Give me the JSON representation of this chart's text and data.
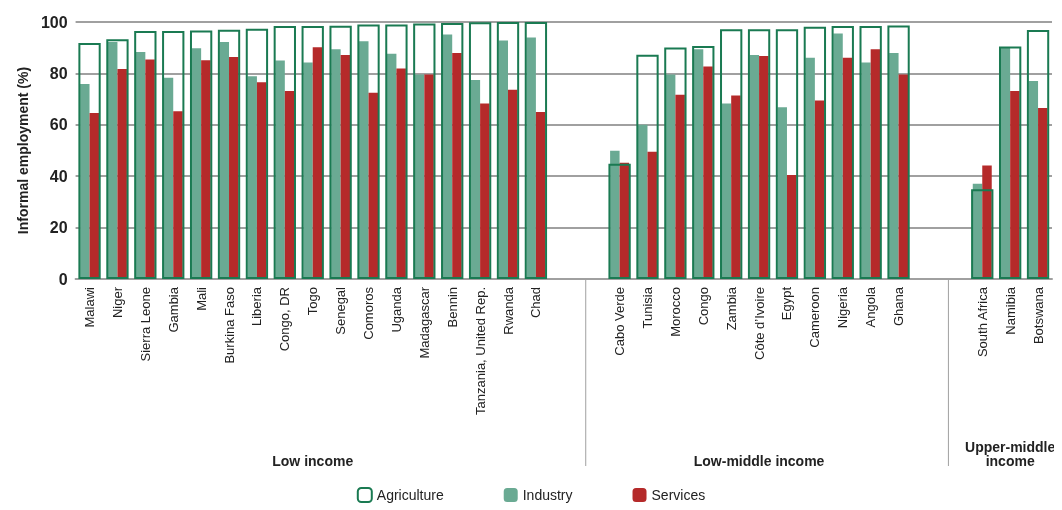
{
  "chart_data": {
    "type": "bar",
    "ylabel": "Informal employment (%)",
    "ylim": [
      0,
      100
    ],
    "yticks": [
      0,
      20,
      40,
      60,
      80,
      100
    ],
    "grid": "y",
    "legend": "bottom",
    "categories": [
      "Malawi",
      "Niger",
      "Sierra Leone",
      "Gambia",
      "Mali",
      "Burkina Faso",
      "Liberia",
      "Congo, DR",
      "Togo",
      "Senegal",
      "Comoros",
      "Uganda",
      "Madagascar",
      "Bennin",
      "Tanzania, United Rep.",
      "Rwanda",
      "Chad",
      null,
      null,
      "Cabo Verde",
      "Tunisia",
      "Morocco",
      "Congo",
      "Zambia",
      "Côte d’Ivoire",
      "Egypt",
      "Cameroon",
      "Nigeria",
      "Angola",
      "Ghana",
      null,
      null,
      "South Africa",
      "Namibia",
      "Botswana"
    ],
    "series": [
      {
        "name": "Agriculture",
        "color": "#1a7a52",
        "values": [
          91.8,
          93.3,
          96.5,
          96.5,
          96.7,
          97,
          97.4,
          98.4,
          98.4,
          98.5,
          99,
          99,
          99.4,
          99.6,
          99.9,
          100,
          100,
          null,
          null,
          44.8,
          87.3,
          90.1,
          90.7,
          97.2,
          97.2,
          97.2,
          98.2,
          98.4,
          98.4,
          98.6,
          null,
          null,
          34.9,
          90.5,
          96.9
        ]
      },
      {
        "name": "Industry",
        "color": "#6aaa93",
        "values": [
          75.9,
          92.2,
          88.3,
          78.3,
          89.8,
          92.2,
          78.9,
          85,
          84.2,
          89.4,
          92.5,
          87.6,
          79.6,
          95.1,
          77.4,
          92.8,
          94,
          null,
          null,
          49.9,
          60,
          79.6,
          89.4,
          68.3,
          87.2,
          66.8,
          86.1,
          95.5,
          84.2,
          87.9,
          null,
          null,
          37.1,
          89.9,
          77
        ]
      },
      {
        "name": "Services",
        "color": "#b52a2a",
        "values": [
          64.6,
          81.7,
          85.4,
          65.3,
          85.1,
          86.4,
          76.6,
          73.2,
          90.2,
          87.2,
          72.5,
          81.9,
          79.6,
          87.9,
          68.3,
          73.6,
          65,
          null,
          null,
          45.2,
          49.5,
          71.7,
          82.7,
          71.4,
          86.8,
          40.5,
          69.5,
          86.1,
          89.4,
          79.6,
          null,
          null,
          44.2,
          73.2,
          66.5
        ]
      }
    ],
    "annotations": [
      "Low income",
      "Low-middle income",
      "Upper-middle\nincome"
    ]
  }
}
